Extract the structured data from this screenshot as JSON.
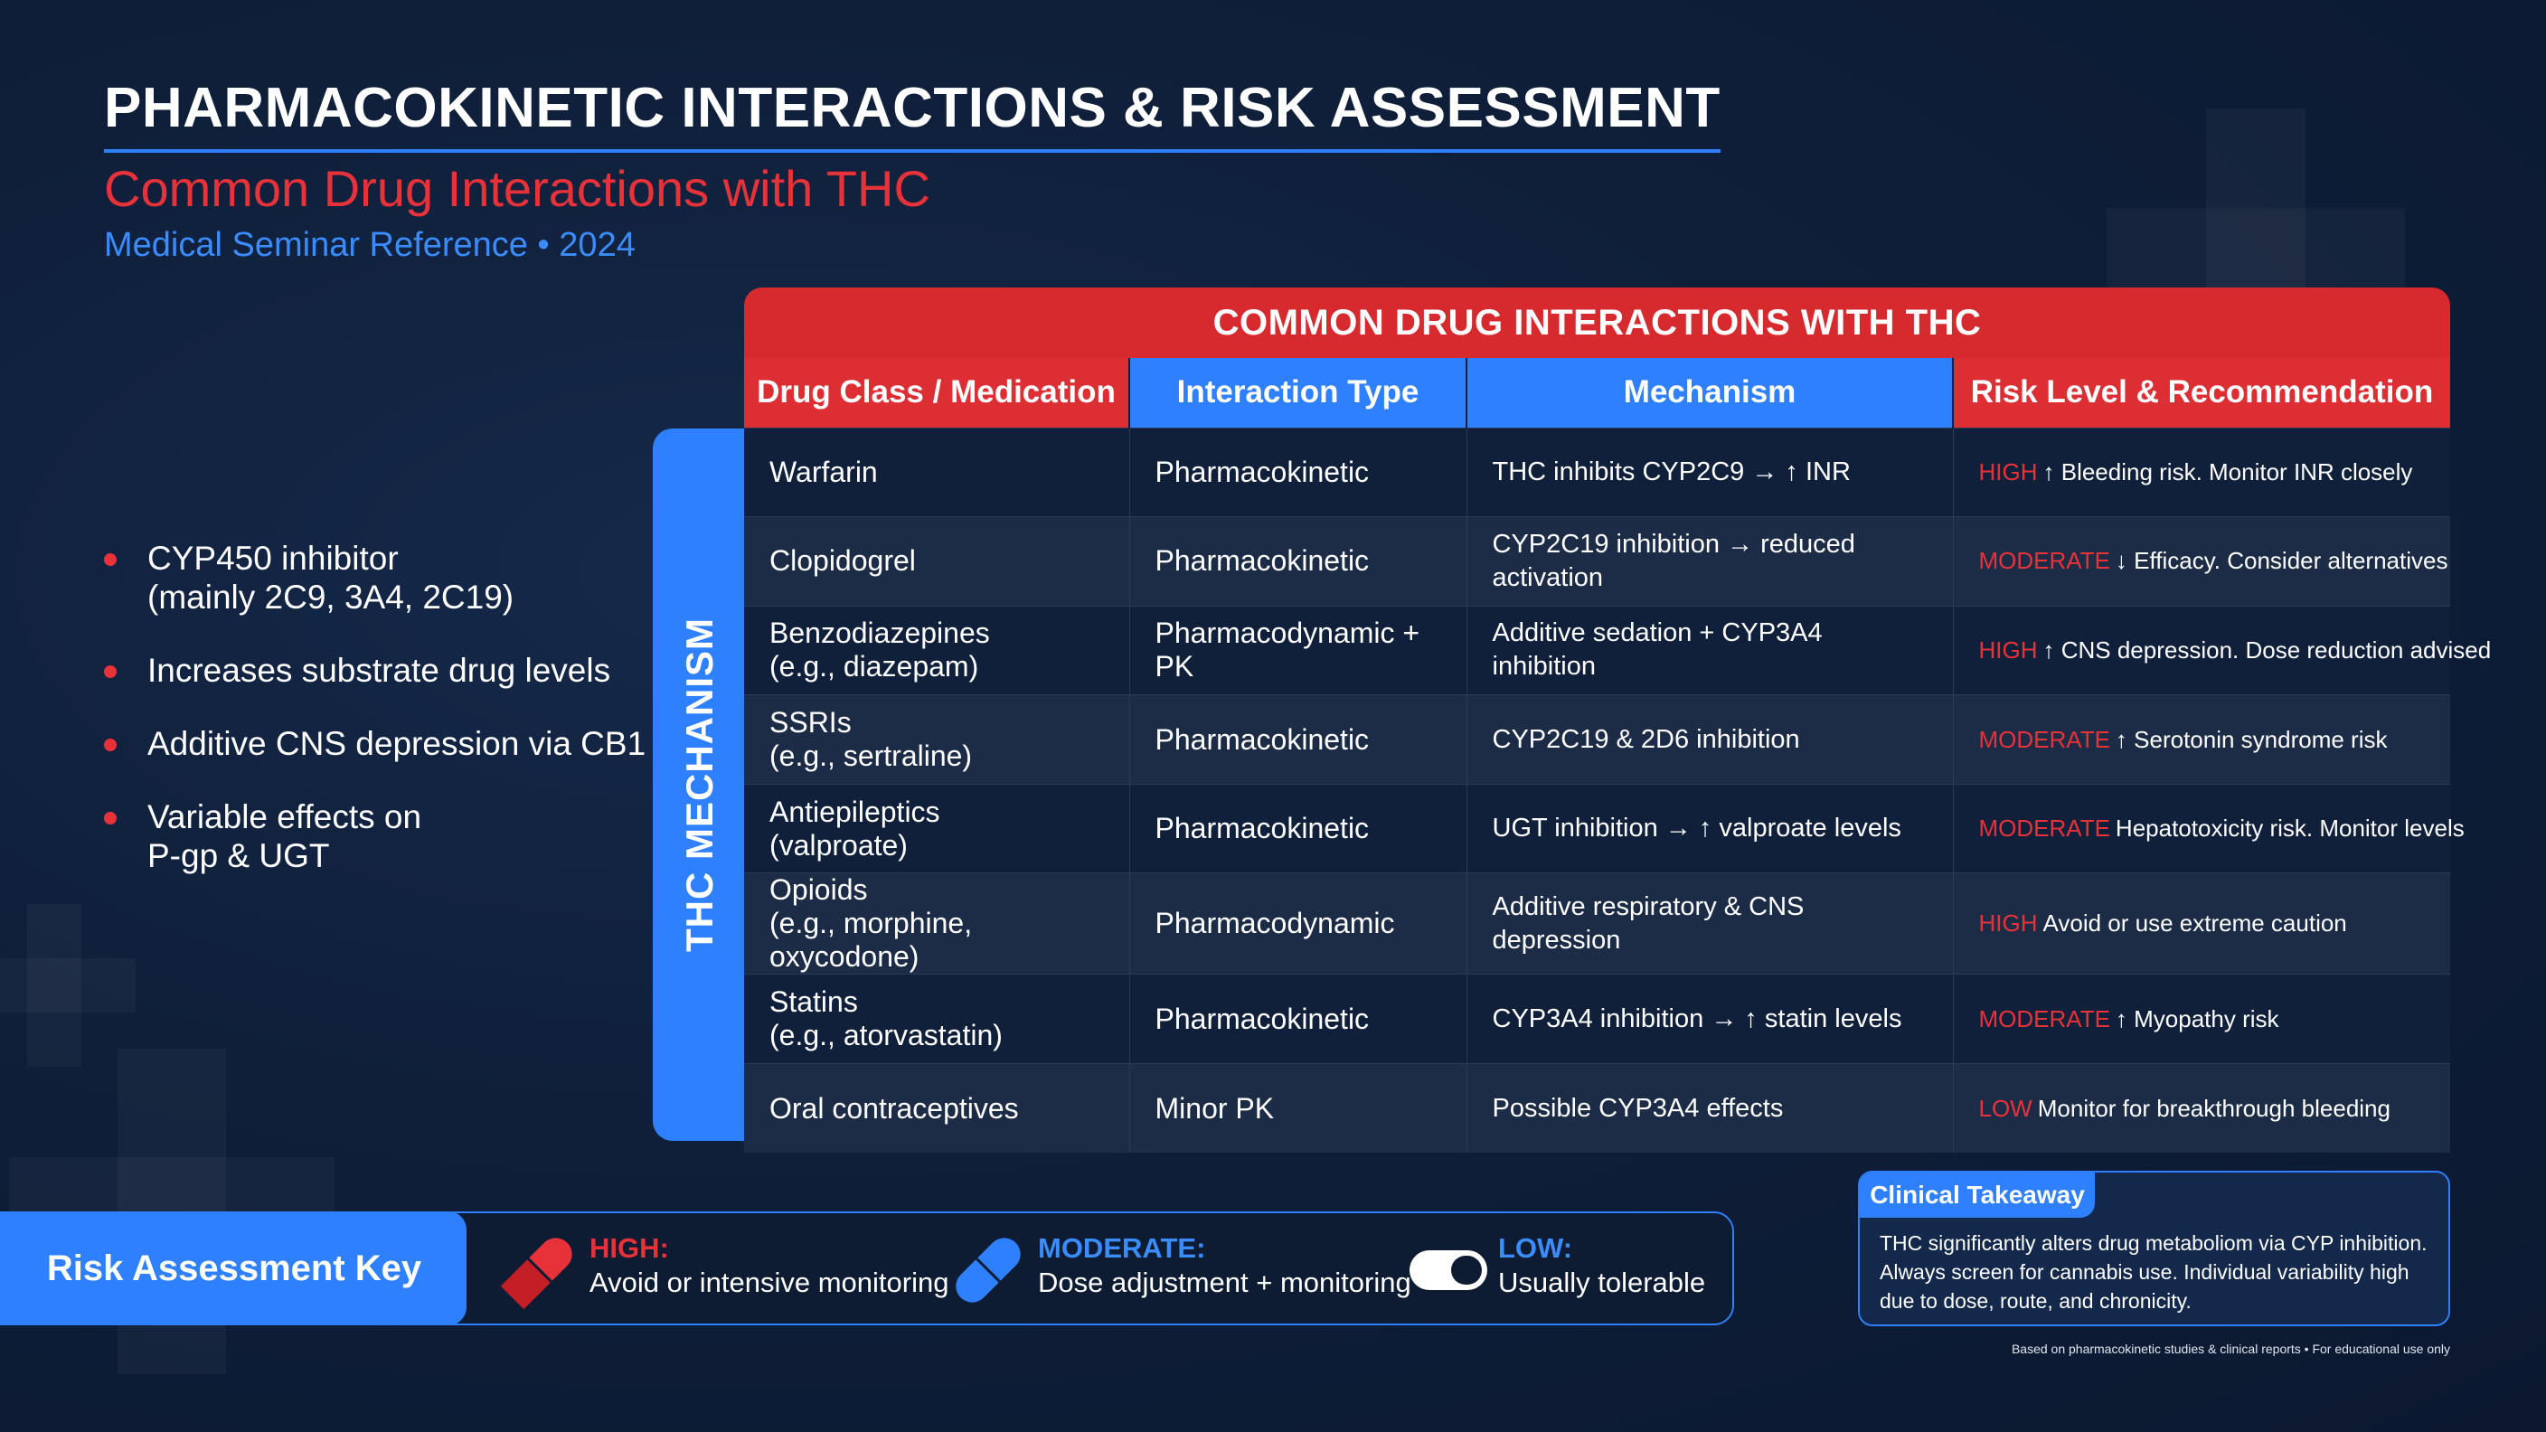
{
  "header": {
    "title": "PHARMACOKINETIC INTERACTIONS & RISK ASSESSMENT",
    "subtitle": "Common Drug Interactions with THC",
    "meta": "Medical Seminar Reference • 2024"
  },
  "bullets": [
    "CYP450 inhibitor\n(mainly 2C9, 3A4, 2C19)",
    "Increases substrate drug levels",
    "Additive CNS depression via CB1",
    "Variable effects on\nP-gp & UGT"
  ],
  "side_label": "THC MECHANISM",
  "table": {
    "banner": "COMMON DRUG INTERACTIONS WITH THC",
    "headers": [
      "Drug Class / Medication",
      "Interaction Type",
      "Mechanism",
      "Risk Level & Recommendation"
    ],
    "rows": [
      {
        "drug": "Warfarin",
        "type": "Pharmacokinetic",
        "mechanism": "THC inhibits CYP2C9 → ↑ INR",
        "level": "HIGH",
        "rec": "↑ Bleeding risk. Monitor INR closely"
      },
      {
        "drug": "Clopidogrel",
        "type": "Pharmacokinetic",
        "mechanism": "CYP2C19 inhibition → reduced activation",
        "level": "MODERATE",
        "rec": "↓ Efficacy. Consider alternatives"
      },
      {
        "drug": "Benzodiazepines\n(e.g., diazepam)",
        "type": "Pharmacodynamic + PK",
        "mechanism": "Additive sedation + CYP3A4 inhibition",
        "level": "HIGH",
        "rec": "↑ CNS depression. Dose reduction advised"
      },
      {
        "drug": "SSRIs\n(e.g., sertraline)",
        "type": "Pharmacokinetic",
        "mechanism": "CYP2C19 & 2D6 inhibition",
        "level": "MODERATE",
        "rec": "↑ Serotonin syndrome risk"
      },
      {
        "drug": "Antiepileptics\n(valproate)",
        "type": "Pharmacokinetic",
        "mechanism": "UGT inhibition → ↑ valproate levels",
        "level": "MODERATE",
        "rec": "Hepatotoxicity risk. Monitor levels"
      },
      {
        "drug": "Opioids\n(e.g., morphine, oxycodone)",
        "type": "Pharmacodynamic",
        "mechanism": "Additive respiratory & CNS depression",
        "level": "HIGH",
        "rec": "Avoid or use extreme caution"
      },
      {
        "drug": "Statins\n(e.g., atorvastatin)",
        "type": "Pharmacokinetic",
        "mechanism": "CYP3A4 inhibition → ↑ statin levels",
        "level": "MODERATE",
        "rec": "↑ Myopathy risk"
      },
      {
        "drug": "Oral contraceptives",
        "type": "Minor PK",
        "mechanism": "Possible CYP3A4 effects",
        "level": "LOW",
        "rec": "Monitor for breakthrough bleeding"
      }
    ]
  },
  "key": {
    "title": "Risk Assessment Key",
    "items": [
      {
        "level": "HIGH:",
        "desc": "Avoid or intensive monitoring",
        "color": "#e8323a",
        "icon": "red-capsule-icon"
      },
      {
        "level": "MODERATE:",
        "desc": "Dose adjustment + monitoring",
        "color": "#3b8cff",
        "icon": "blue-capsule-icon"
      },
      {
        "level": "LOW:",
        "desc": "Usually tolerable",
        "color": "#3b8cff",
        "icon": "white-capsule-icon"
      }
    ]
  },
  "takeaway": {
    "title": "Clinical Takeaway",
    "text": "THC significantly alters drug metaboliom via CYP inhibition. Always screen for cannabis use. Individual variability high due to dose, route, and chronicity."
  },
  "footnote": "Based on pharmacokinetic studies & clinical reports • For educational use only",
  "colors": {
    "accent_red": "#e8323a",
    "accent_blue": "#2f80ff",
    "background": "#0f1f3a"
  }
}
